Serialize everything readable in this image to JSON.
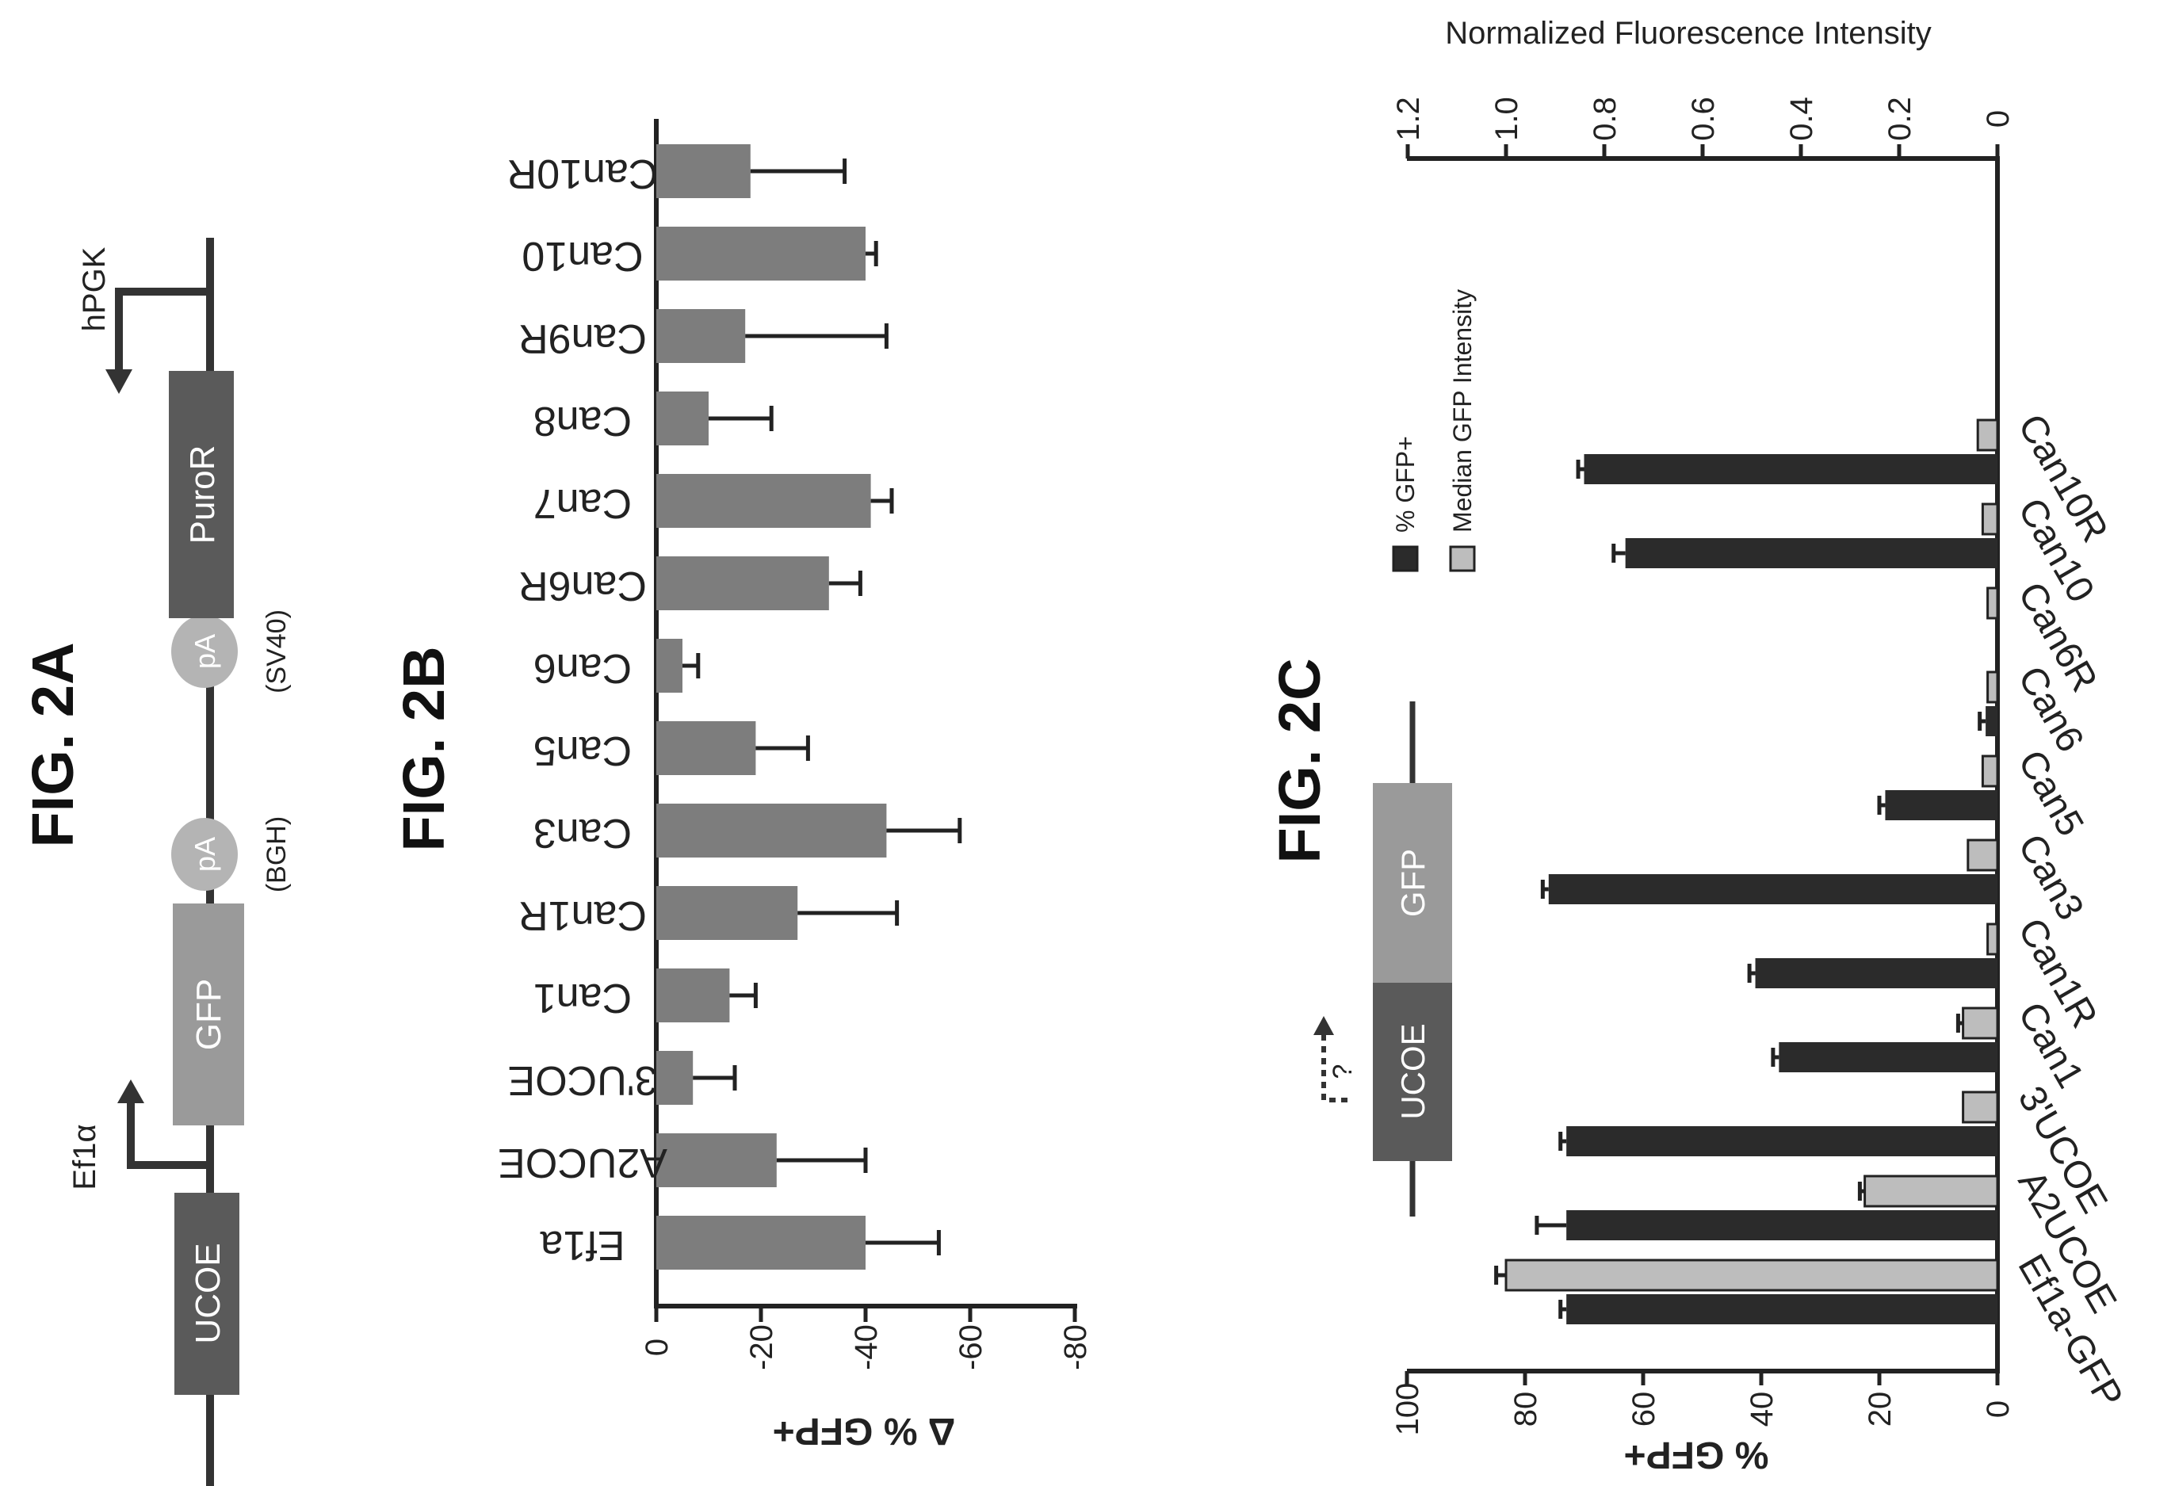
{
  "figures": {
    "a": {
      "label": "FIG. 2A",
      "elements": {
        "ucoe": "UCOE",
        "gfp": "GFP",
        "pa1": "pA",
        "pa2": "pA",
        "puror": "PuroR",
        "promoter1": "Ef1α",
        "promoter2": "hPGK",
        "pa1_note": "(BGH)",
        "pa2_note": "(SV40)"
      }
    },
    "b": {
      "label": "FIG. 2B"
    },
    "c": {
      "label": "FIG. 2C",
      "inset": {
        "ucoe": "UCOE",
        "gfp": "GFP",
        "question": "?"
      }
    }
  },
  "colors": {
    "dark_box": "#5a5a5a",
    "mid_box": "#9a9a9a",
    "circle": "#b4b4b4",
    "bar_b": "#7d7d7d",
    "bar_dark": "#2b2b2b",
    "bar_light": "#bdbdbd",
    "ink": "#222222"
  },
  "chart_data": [
    {
      "id": "fig2b",
      "type": "bar",
      "title": "",
      "xlabel": "",
      "ylabel": "Δ % GFP+",
      "ylim": [
        0,
        -80
      ],
      "yticks": [
        0,
        -20,
        -40,
        -60,
        -80
      ],
      "categories": [
        "Ef1a",
        "A2UCOE",
        "3'UCOE",
        "Can1",
        "Can1R",
        "Can3",
        "Can5",
        "Can6",
        "Can6R",
        "Can7",
        "Can8",
        "Can9R",
        "Can10",
        "Can10R"
      ],
      "values": [
        -40,
        -23,
        -7,
        -14,
        -27,
        -44,
        -19,
        -5,
        -33,
        -41,
        -10,
        -17,
        -40,
        -18
      ],
      "errors": [
        14,
        17,
        8,
        5,
        19,
        14,
        10,
        3,
        6,
        4,
        12,
        27,
        2,
        18
      ]
    },
    {
      "id": "fig2c",
      "type": "bar",
      "title": "",
      "xlabel": "",
      "ylabel": "% GFP+",
      "y2label": "Normalized Fluorescence Intensity",
      "ylim": [
        0,
        100
      ],
      "yticks": [
        0,
        20,
        40,
        60,
        80,
        100
      ],
      "y2lim": [
        0,
        1.2
      ],
      "y2ticks": [
        "0",
        "0.2",
        "0.4",
        "0.6",
        "0.8",
        "1.0",
        "1.2"
      ],
      "legend": "top-right",
      "categories": [
        "Ef1a-GFP",
        "A2UCOE",
        "3'UCOE",
        "Can1",
        "Can1R",
        "Can3",
        "Can5",
        "Can6",
        "Can6R",
        "Can10",
        "Can10R"
      ],
      "series": [
        {
          "name": "% GFP+",
          "axis": "left",
          "values": [
            73,
            73,
            73,
            37,
            41,
            76,
            19,
            2,
            0,
            63,
            70
          ],
          "errors": [
            1,
            5,
            1,
            1,
            1,
            1,
            1,
            1,
            0,
            2,
            1
          ]
        },
        {
          "name": "Median GFP Intensity",
          "axis": "right",
          "values": [
            1.0,
            0.27,
            0.07,
            0.07,
            0.02,
            0.06,
            0.03,
            0.02,
            0.02,
            0.03,
            0.04
          ],
          "errors": [
            0.02,
            0.01,
            0.0,
            0.01,
            0.0,
            0.0,
            0.0,
            0.0,
            0.0,
            0.0,
            0.0
          ]
        }
      ]
    }
  ]
}
